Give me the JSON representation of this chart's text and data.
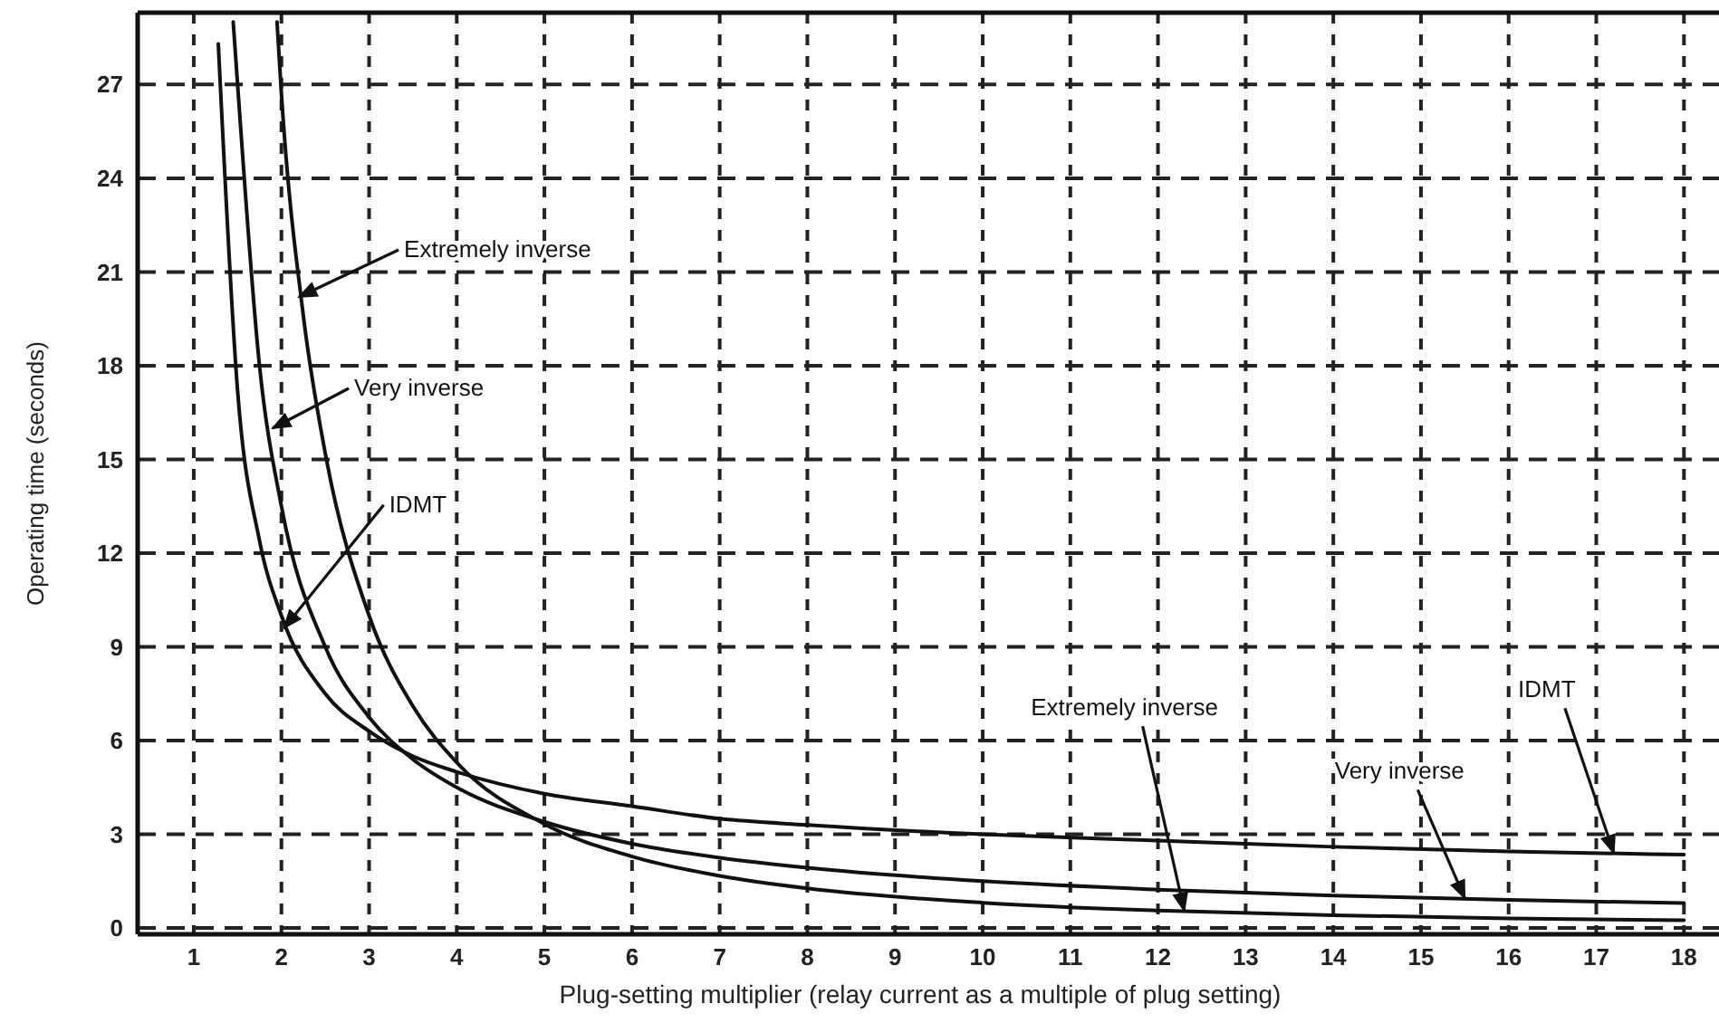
{
  "chart_data": {
    "type": "line",
    "xlabel": "Plug-setting multiplier (relay current as a multiple of plug setting)",
    "ylabel": "Operating time (seconds)",
    "xlim": [
      0.36,
      18.4
    ],
    "ylim": [
      -0.2,
      29.3
    ],
    "xticks": [
      1,
      2,
      3,
      4,
      5,
      6,
      7,
      8,
      9,
      10,
      11,
      12,
      13,
      14,
      15,
      16,
      17,
      18
    ],
    "yticks": [
      0,
      3,
      6,
      9,
      12,
      15,
      18,
      21,
      24,
      27
    ],
    "grid": true,
    "marker": "none",
    "line_style": "solid",
    "series": [
      {
        "color": "#111111",
        "x": [
          1.28,
          1.5,
          1.75,
          2,
          2.5,
          3,
          3.5,
          4,
          5,
          6,
          7,
          8,
          10,
          12,
          14,
          16,
          18
        ],
        "values": [
          28.3,
          17.2,
          12.4,
          10,
          7.5,
          6.3,
          5.5,
          5.0,
          4.3,
          3.9,
          3.5,
          3.3,
          3.0,
          2.8,
          2.6,
          2.45,
          2.35
        ]
      },
      {
        "color": "#111111",
        "x": [
          1.45,
          1.5,
          1.75,
          2,
          2.5,
          3,
          3.5,
          4,
          5,
          6,
          7,
          8,
          10,
          12,
          14,
          16,
          18
        ],
        "values": [
          29,
          27,
          18,
          13.5,
          9,
          6.75,
          5.4,
          4.5,
          3.4,
          2.7,
          2.25,
          1.93,
          1.5,
          1.23,
          1.04,
          0.9,
          0.8
        ]
      },
      {
        "color": "#111111",
        "x": [
          1.95,
          2,
          2.25,
          2.5,
          3,
          3.5,
          4,
          5,
          6,
          7,
          8,
          10,
          12,
          14,
          16,
          18
        ],
        "values": [
          29,
          26.7,
          19.6,
          15.2,
          10,
          7.1,
          5.3,
          3.33,
          2.29,
          1.67,
          1.27,
          0.81,
          0.56,
          0.41,
          0.31,
          0.25
        ]
      }
    ],
    "annotations": [
      {
        "text": "Extremely inverse",
        "x": 2.2,
        "y": 20.2
      },
      {
        "text": "Very inverse",
        "x": 1.9,
        "y": 16
      },
      {
        "text": "IDMT",
        "x": 2.03,
        "y": 9.6
      },
      {
        "text": "Extremely inverse",
        "x": 12.3,
        "y": 0.55
      },
      {
        "text": "Very inverse",
        "x": 15.5,
        "y": 0.95
      },
      {
        "text": "IDMT",
        "x": 17.2,
        "y": 2.4
      }
    ]
  }
}
